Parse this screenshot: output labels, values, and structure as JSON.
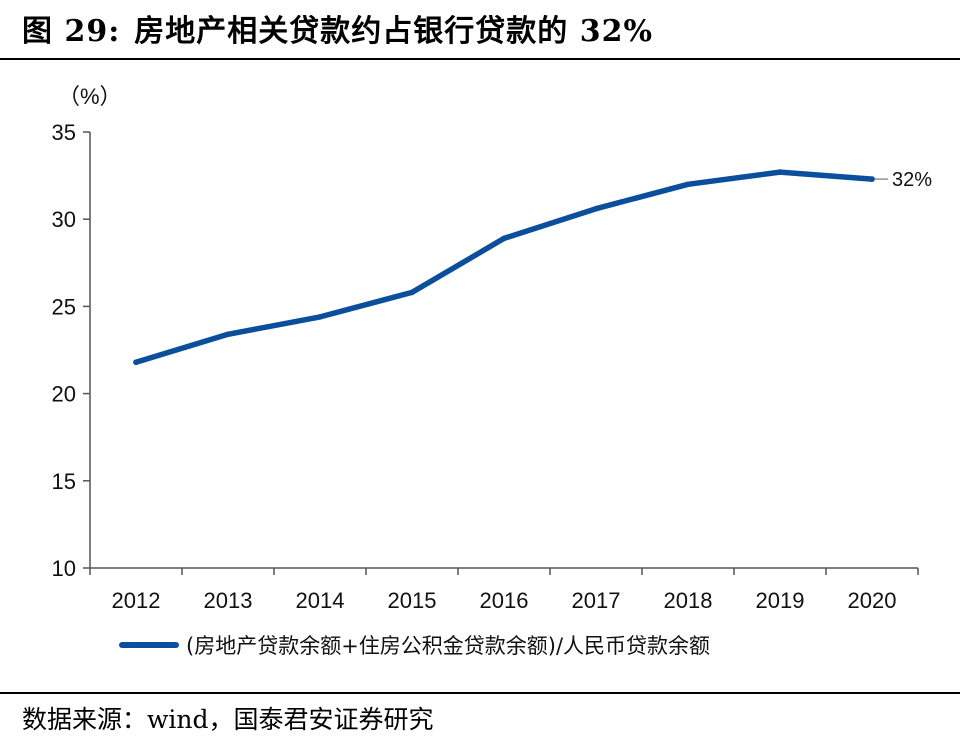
{
  "figure": {
    "number": "图 29:",
    "title": "房地产相关贷款约占银行贷款的 32%",
    "source": "数据来源：wind，国泰君安证券研究"
  },
  "chart_data": {
    "type": "line",
    "unit_label": "（%）",
    "categories": [
      "2012",
      "2013",
      "2014",
      "2015",
      "2016",
      "2017",
      "2018",
      "2019",
      "2020"
    ],
    "series": [
      {
        "name": "(房地产贷款余额+住房公积金贷款余额)/人民币贷款余额",
        "color": "#0b4f9c",
        "values": [
          21.8,
          23.4,
          24.4,
          25.8,
          28.9,
          30.6,
          32.0,
          32.7,
          32.3
        ]
      }
    ],
    "ylim": [
      10,
      35
    ],
    "yticks": [
      "10",
      "15",
      "20",
      "25",
      "30",
      "35"
    ],
    "annotation": {
      "text": "32%",
      "category": "2020"
    },
    "grid": false,
    "legend": "bottom"
  }
}
